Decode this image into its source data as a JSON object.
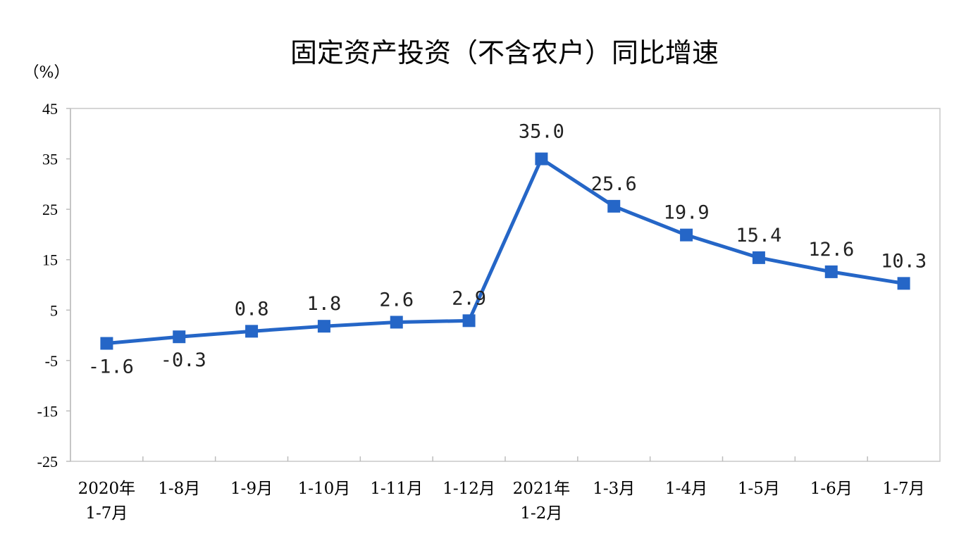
{
  "chart_data": {
    "type": "line",
    "title": "固定资产投资（不含农户）同比增速",
    "unit_label": "（%）",
    "xlabel": "",
    "ylabel": "",
    "ylim": [
      -25,
      45
    ],
    "yticks": [
      45,
      35,
      25,
      15,
      5,
      -5,
      -15,
      -25
    ],
    "grid": false,
    "legend": "none",
    "categories": [
      [
        "2020年",
        "1-7月"
      ],
      [
        "1-8月"
      ],
      [
        "1-9月"
      ],
      [
        "1-10月"
      ],
      [
        "1-11月"
      ],
      [
        "1-12月"
      ],
      [
        "2021年",
        "1-2月"
      ],
      [
        "1-3月"
      ],
      [
        "1-4月"
      ],
      [
        "1-5月"
      ],
      [
        "1-6月"
      ],
      [
        "1-7月"
      ]
    ],
    "series": [
      {
        "values": [
          -1.6,
          -0.3,
          0.8,
          1.8,
          2.6,
          2.9,
          35.0,
          25.6,
          19.9,
          15.4,
          12.6,
          10.3
        ],
        "labels": [
          "-1.6",
          "-0.3",
          "0.8",
          "1.8",
          "2.6",
          "2.9",
          "35.0",
          "25.6",
          "19.9",
          "15.4",
          "12.6",
          "10.3"
        ],
        "color": "#2566c7",
        "marker": "square"
      }
    ]
  }
}
